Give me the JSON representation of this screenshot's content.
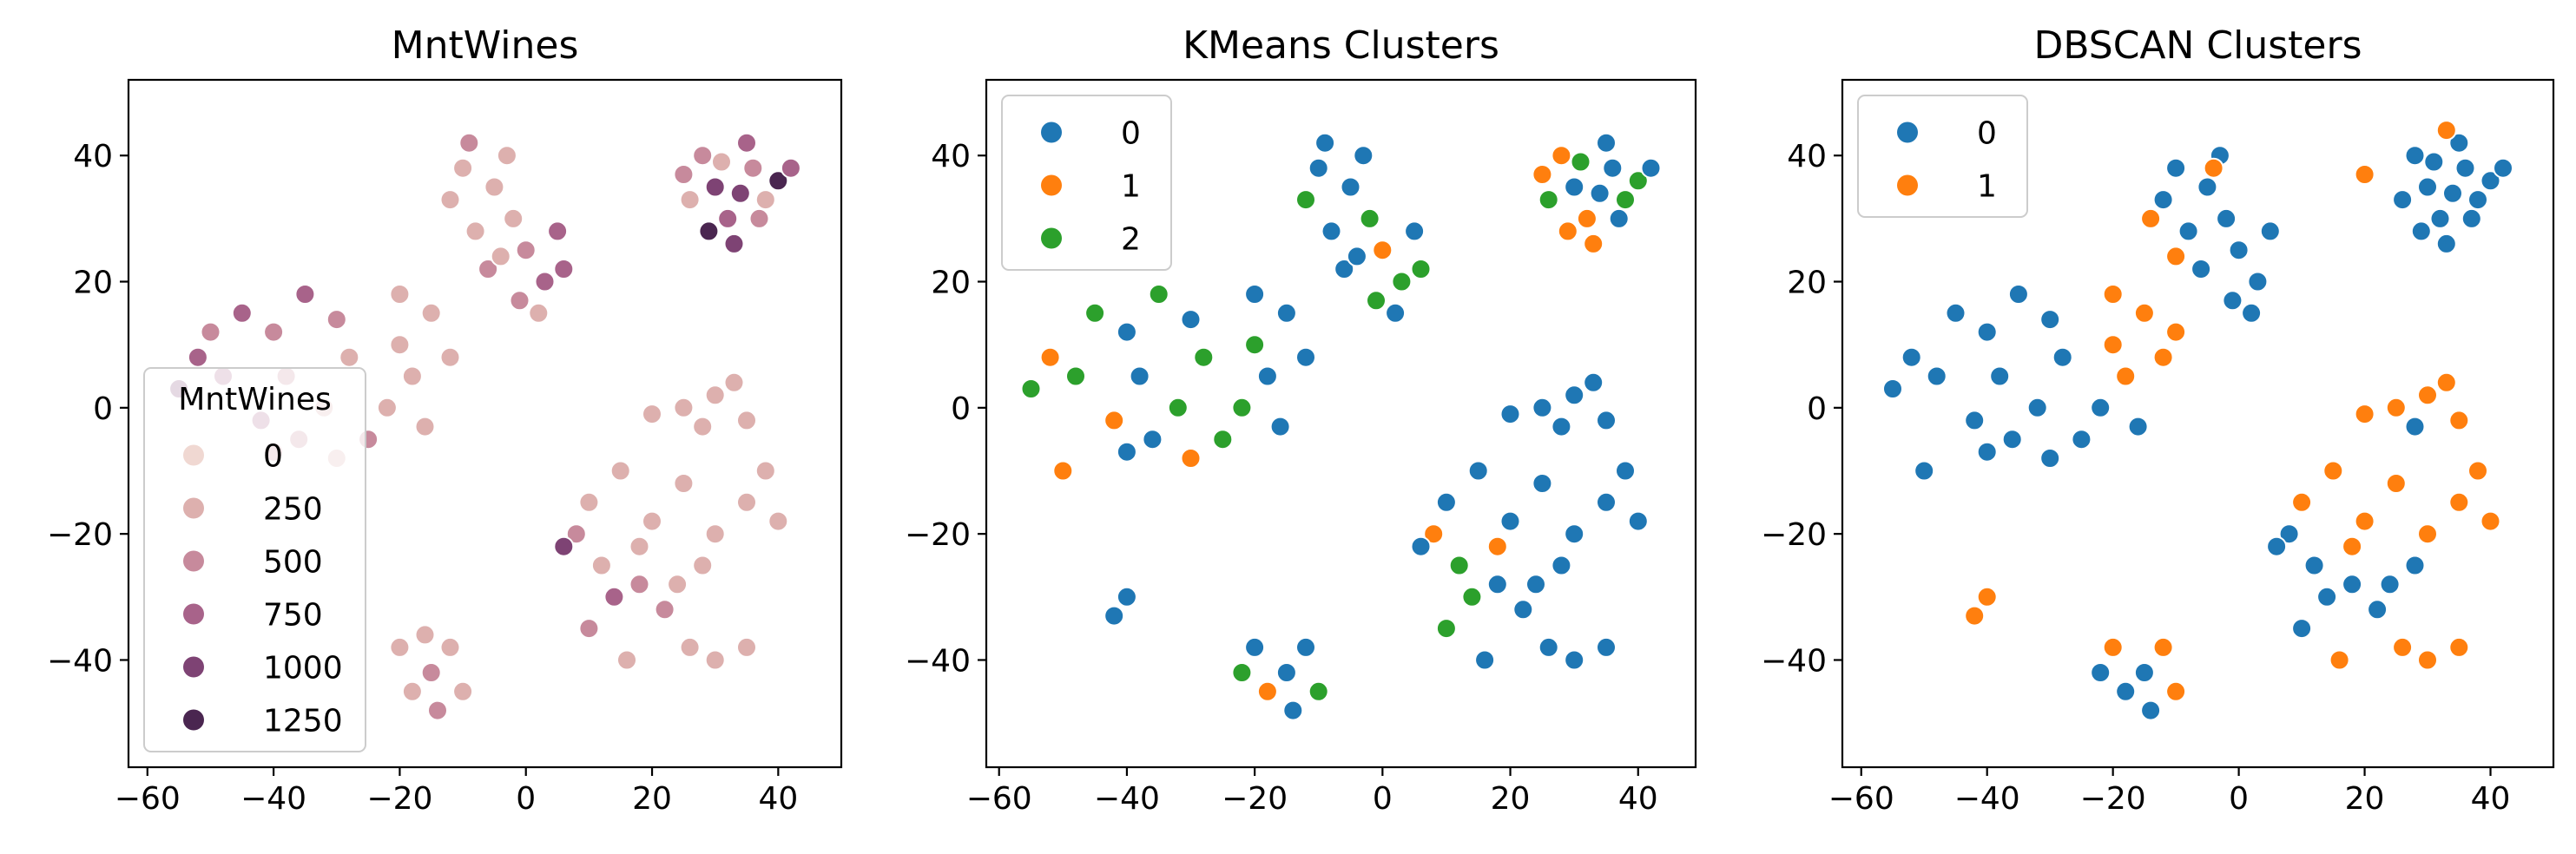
{
  "chart_data": [
    {
      "type": "scatter",
      "title": "MntWines",
      "xlabel": "",
      "ylabel": "",
      "xlim": [
        -63,
        50
      ],
      "ylim": [
        -57,
        52
      ],
      "xticks": [
        -60,
        -40,
        -20,
        0,
        20,
        40
      ],
      "yticks": [
        -40,
        -20,
        0,
        20,
        40
      ],
      "xtick_labels": [
        "−60",
        "−40",
        "−20",
        "0",
        "20",
        "40"
      ],
      "ytick_labels": [
        "−40",
        "−20",
        "0",
        "20",
        "40"
      ],
      "hue": "MntWines",
      "legend": {
        "title": "MntWines",
        "placement": "lower-left",
        "entries": [
          "0",
          "250",
          "500",
          "750",
          "1000",
          "1250"
        ],
        "colors": [
          "#f0d8d2",
          "#ddb0ae",
          "#c78a9c",
          "#a8638a",
          "#7e4374",
          "#4a2650"
        ]
      },
      "points": [
        [
          30,
          35,
          4
        ],
        [
          36,
          38,
          2
        ],
        [
          32,
          30,
          3
        ],
        [
          38,
          33,
          1
        ],
        [
          28,
          40,
          2
        ],
        [
          35,
          42,
          3
        ],
        [
          40,
          36,
          5
        ],
        [
          26,
          33,
          1
        ],
        [
          33,
          26,
          4
        ],
        [
          37,
          30,
          2
        ],
        [
          29,
          28,
          5
        ],
        [
          42,
          38,
          3
        ],
        [
          31,
          39,
          1
        ],
        [
          34,
          34,
          4
        ],
        [
          25,
          37,
          2
        ],
        [
          -10,
          38,
          1
        ],
        [
          -5,
          35,
          1
        ],
        [
          -2,
          30,
          1
        ],
        [
          -8,
          28,
          1
        ],
        [
          -12,
          33,
          1
        ],
        [
          -3,
          40,
          1
        ],
        [
          -6,
          22,
          2
        ],
        [
          0,
          25,
          2
        ],
        [
          3,
          20,
          3
        ],
        [
          5,
          28,
          3
        ],
        [
          -1,
          17,
          2
        ],
        [
          2,
          15,
          1
        ],
        [
          6,
          22,
          3
        ],
        [
          -9,
          42,
          2
        ],
        [
          -4,
          24,
          1
        ],
        [
          -45,
          15,
          3
        ],
        [
          -40,
          12,
          2
        ],
        [
          -35,
          18,
          3
        ],
        [
          -30,
          14,
          2
        ],
        [
          -28,
          8,
          1
        ],
        [
          -38,
          5,
          2
        ],
        [
          -32,
          0,
          1
        ],
        [
          -36,
          -5,
          2
        ],
        [
          -42,
          -2,
          3
        ],
        [
          -48,
          5,
          3
        ],
        [
          -52,
          8,
          3
        ],
        [
          -55,
          3,
          4
        ],
        [
          -25,
          -5,
          2
        ],
        [
          -30,
          -8,
          1
        ],
        [
          -40,
          -7,
          2
        ],
        [
          -50,
          12,
          2
        ],
        [
          -20,
          18,
          1
        ],
        [
          -15,
          15,
          1
        ],
        [
          -12,
          8,
          1
        ],
        [
          -18,
          5,
          1
        ],
        [
          -22,
          0,
          1
        ],
        [
          -16,
          -3,
          1
        ],
        [
          -20,
          10,
          1
        ],
        [
          25,
          0,
          1
        ],
        [
          30,
          2,
          1
        ],
        [
          35,
          -2,
          1
        ],
        [
          28,
          -3,
          1
        ],
        [
          20,
          -1,
          1
        ],
        [
          33,
          4,
          1
        ],
        [
          10,
          -15,
          1
        ],
        [
          15,
          -10,
          1
        ],
        [
          20,
          -18,
          1
        ],
        [
          25,
          -12,
          1
        ],
        [
          30,
          -20,
          1
        ],
        [
          35,
          -15,
          1
        ],
        [
          40,
          -18,
          1
        ],
        [
          12,
          -25,
          1
        ],
        [
          18,
          -28,
          2
        ],
        [
          28,
          -25,
          1
        ],
        [
          38,
          -10,
          1
        ],
        [
          8,
          -20,
          2
        ],
        [
          14,
          -30,
          3
        ],
        [
          22,
          -32,
          2
        ],
        [
          26,
          -38,
          1
        ],
        [
          30,
          -40,
          1
        ],
        [
          35,
          -38,
          1
        ],
        [
          16,
          -40,
          1
        ],
        [
          10,
          -35,
          2
        ],
        [
          6,
          -22,
          4
        ],
        [
          18,
          -22,
          1
        ],
        [
          24,
          -28,
          1
        ],
        [
          -20,
          -38,
          1
        ],
        [
          -15,
          -42,
          2
        ],
        [
          -12,
          -38,
          1
        ],
        [
          -18,
          -45,
          1
        ],
        [
          -14,
          -48,
          2
        ],
        [
          -10,
          -45,
          1
        ],
        [
          -16,
          -36,
          1
        ]
      ]
    },
    {
      "type": "scatter",
      "title": "KMeans Clusters",
      "xlabel": "",
      "ylabel": "",
      "xlim": [
        -62,
        49
      ],
      "ylim": [
        -57,
        52
      ],
      "xticks": [
        -60,
        -40,
        -20,
        0,
        20,
        40
      ],
      "yticks": [
        -40,
        -20,
        0,
        20,
        40
      ],
      "xtick_labels": [
        "−60",
        "−40",
        "−20",
        "0",
        "20",
        "40"
      ],
      "ytick_labels": [
        "−40",
        "−20",
        "0",
        "20",
        "40"
      ],
      "legend": {
        "title": "",
        "placement": "upper-left",
        "entries": [
          "0",
          "1",
          "2"
        ],
        "colors": [
          "#1f77b4",
          "#ff7f0e",
          "#2ca02c"
        ]
      },
      "points": [
        [
          30,
          35,
          0
        ],
        [
          36,
          38,
          0
        ],
        [
          32,
          30,
          1
        ],
        [
          38,
          33,
          2
        ],
        [
          28,
          40,
          1
        ],
        [
          35,
          42,
          0
        ],
        [
          40,
          36,
          2
        ],
        [
          26,
          33,
          2
        ],
        [
          33,
          26,
          1
        ],
        [
          37,
          30,
          0
        ],
        [
          29,
          28,
          1
        ],
        [
          42,
          38,
          0
        ],
        [
          31,
          39,
          2
        ],
        [
          34,
          34,
          0
        ],
        [
          25,
          37,
          1
        ],
        [
          -10,
          38,
          0
        ],
        [
          -5,
          35,
          0
        ],
        [
          -2,
          30,
          2
        ],
        [
          -8,
          28,
          0
        ],
        [
          -12,
          33,
          2
        ],
        [
          -3,
          40,
          0
        ],
        [
          -6,
          22,
          0
        ],
        [
          0,
          25,
          1
        ],
        [
          3,
          20,
          2
        ],
        [
          5,
          28,
          0
        ],
        [
          -1,
          17,
          2
        ],
        [
          2,
          15,
          0
        ],
        [
          6,
          22,
          2
        ],
        [
          -9,
          42,
          0
        ],
        [
          -4,
          24,
          0
        ],
        [
          -45,
          15,
          2
        ],
        [
          -40,
          12,
          0
        ],
        [
          -35,
          18,
          2
        ],
        [
          -30,
          14,
          0
        ],
        [
          -28,
          8,
          2
        ],
        [
          -38,
          5,
          0
        ],
        [
          -32,
          0,
          2
        ],
        [
          -36,
          -5,
          0
        ],
        [
          -42,
          -2,
          1
        ],
        [
          -48,
          5,
          2
        ],
        [
          -52,
          8,
          1
        ],
        [
          -55,
          3,
          2
        ],
        [
          -25,
          -5,
          2
        ],
        [
          -30,
          -8,
          1
        ],
        [
          -40,
          -7,
          0
        ],
        [
          -50,
          -10,
          1
        ],
        [
          -20,
          18,
          0
        ],
        [
          -15,
          15,
          0
        ],
        [
          -12,
          8,
          0
        ],
        [
          -18,
          5,
          0
        ],
        [
          -22,
          0,
          2
        ],
        [
          -16,
          -3,
          0
        ],
        [
          -20,
          10,
          2
        ],
        [
          25,
          0,
          0
        ],
        [
          30,
          2,
          0
        ],
        [
          35,
          -2,
          0
        ],
        [
          28,
          -3,
          0
        ],
        [
          20,
          -1,
          0
        ],
        [
          33,
          4,
          0
        ],
        [
          10,
          -15,
          0
        ],
        [
          15,
          -10,
          0
        ],
        [
          20,
          -18,
          0
        ],
        [
          25,
          -12,
          0
        ],
        [
          30,
          -20,
          0
        ],
        [
          35,
          -15,
          0
        ],
        [
          40,
          -18,
          0
        ],
        [
          12,
          -25,
          2
        ],
        [
          18,
          -28,
          0
        ],
        [
          28,
          -25,
          0
        ],
        [
          38,
          -10,
          0
        ],
        [
          8,
          -20,
          1
        ],
        [
          14,
          -30,
          2
        ],
        [
          22,
          -32,
          0
        ],
        [
          26,
          -38,
          0
        ],
        [
          30,
          -40,
          0
        ],
        [
          35,
          -38,
          0
        ],
        [
          16,
          -40,
          0
        ],
        [
          10,
          -35,
          2
        ],
        [
          6,
          -22,
          0
        ],
        [
          18,
          -22,
          1
        ],
        [
          24,
          -28,
          0
        ],
        [
          -20,
          -38,
          0
        ],
        [
          -15,
          -42,
          0
        ],
        [
          -12,
          -38,
          0
        ],
        [
          -18,
          -45,
          1
        ],
        [
          -14,
          -48,
          0
        ],
        [
          -10,
          -45,
          2
        ],
        [
          -22,
          -42,
          2
        ],
        [
          -40,
          -30,
          0
        ],
        [
          -42,
          -33,
          0
        ]
      ]
    },
    {
      "type": "scatter",
      "title": "DBSCAN Clusters",
      "xlabel": "",
      "ylabel": "",
      "xlim": [
        -63,
        50
      ],
      "ylim": [
        -57,
        52
      ],
      "xticks": [
        -60,
        -40,
        -20,
        0,
        20,
        40
      ],
      "yticks": [
        -40,
        -20,
        0,
        20,
        40
      ],
      "xtick_labels": [
        "−60",
        "−40",
        "−20",
        "0",
        "20",
        "40"
      ],
      "ytick_labels": [
        "−40",
        "−20",
        "0",
        "20",
        "40"
      ],
      "legend": {
        "title": "",
        "placement": "upper-left",
        "entries": [
          "0",
          "1"
        ],
        "colors": [
          "#1f77b4",
          "#ff7f0e"
        ]
      },
      "points": [
        [
          30,
          35,
          0
        ],
        [
          36,
          38,
          0
        ],
        [
          32,
          30,
          0
        ],
        [
          38,
          33,
          0
        ],
        [
          28,
          40,
          0
        ],
        [
          35,
          42,
          0
        ],
        [
          40,
          36,
          0
        ],
        [
          26,
          33,
          0
        ],
        [
          33,
          26,
          0
        ],
        [
          37,
          30,
          0
        ],
        [
          29,
          28,
          0
        ],
        [
          42,
          38,
          0
        ],
        [
          31,
          39,
          0
        ],
        [
          34,
          34,
          0
        ],
        [
          20,
          37,
          1
        ],
        [
          33,
          44,
          1
        ],
        [
          -10,
          38,
          0
        ],
        [
          -5,
          35,
          0
        ],
        [
          -2,
          30,
          0
        ],
        [
          -8,
          28,
          0
        ],
        [
          -12,
          33,
          0
        ],
        [
          -3,
          40,
          0
        ],
        [
          -6,
          22,
          0
        ],
        [
          0,
          25,
          0
        ],
        [
          3,
          20,
          0
        ],
        [
          5,
          28,
          0
        ],
        [
          -1,
          17,
          0
        ],
        [
          2,
          15,
          0
        ],
        [
          -14,
          30,
          1
        ],
        [
          -10,
          24,
          1
        ],
        [
          -4,
          38,
          1
        ],
        [
          -45,
          15,
          0
        ],
        [
          -40,
          12,
          0
        ],
        [
          -35,
          18,
          0
        ],
        [
          -30,
          14,
          0
        ],
        [
          -28,
          8,
          0
        ],
        [
          -38,
          5,
          0
        ],
        [
          -32,
          0,
          0
        ],
        [
          -36,
          -5,
          0
        ],
        [
          -42,
          -2,
          0
        ],
        [
          -48,
          5,
          0
        ],
        [
          -52,
          8,
          0
        ],
        [
          -55,
          3,
          0
        ],
        [
          -25,
          -5,
          0
        ],
        [
          -30,
          -8,
          0
        ],
        [
          -40,
          -7,
          0
        ],
        [
          -50,
          -10,
          0
        ],
        [
          -20,
          18,
          1
        ],
        [
          -15,
          15,
          1
        ],
        [
          -12,
          8,
          1
        ],
        [
          -18,
          5,
          1
        ],
        [
          -22,
          0,
          0
        ],
        [
          -16,
          -3,
          0
        ],
        [
          -20,
          10,
          1
        ],
        [
          -10,
          12,
          1
        ],
        [
          25,
          0,
          1
        ],
        [
          30,
          2,
          1
        ],
        [
          35,
          -2,
          1
        ],
        [
          28,
          -3,
          0
        ],
        [
          20,
          -1,
          1
        ],
        [
          33,
          4,
          1
        ],
        [
          10,
          -15,
          1
        ],
        [
          15,
          -10,
          1
        ],
        [
          20,
          -18,
          1
        ],
        [
          25,
          -12,
          1
        ],
        [
          30,
          -20,
          1
        ],
        [
          35,
          -15,
          1
        ],
        [
          40,
          -18,
          1
        ],
        [
          12,
          -25,
          0
        ],
        [
          18,
          -28,
          0
        ],
        [
          28,
          -25,
          0
        ],
        [
          38,
          -10,
          1
        ],
        [
          8,
          -20,
          0
        ],
        [
          14,
          -30,
          0
        ],
        [
          22,
          -32,
          0
        ],
        [
          26,
          -38,
          1
        ],
        [
          30,
          -40,
          1
        ],
        [
          35,
          -38,
          1
        ],
        [
          16,
          -40,
          1
        ],
        [
          10,
          -35,
          0
        ],
        [
          6,
          -22,
          0
        ],
        [
          18,
          -22,
          1
        ],
        [
          24,
          -28,
          0
        ],
        [
          -20,
          -38,
          1
        ],
        [
          -15,
          -42,
          0
        ],
        [
          -12,
          -38,
          1
        ],
        [
          -18,
          -45,
          0
        ],
        [
          -14,
          -48,
          0
        ],
        [
          -10,
          -45,
          1
        ],
        [
          -22,
          -42,
          0
        ],
        [
          -40,
          -30,
          1
        ],
        [
          -42,
          -33,
          1
        ]
      ]
    }
  ]
}
